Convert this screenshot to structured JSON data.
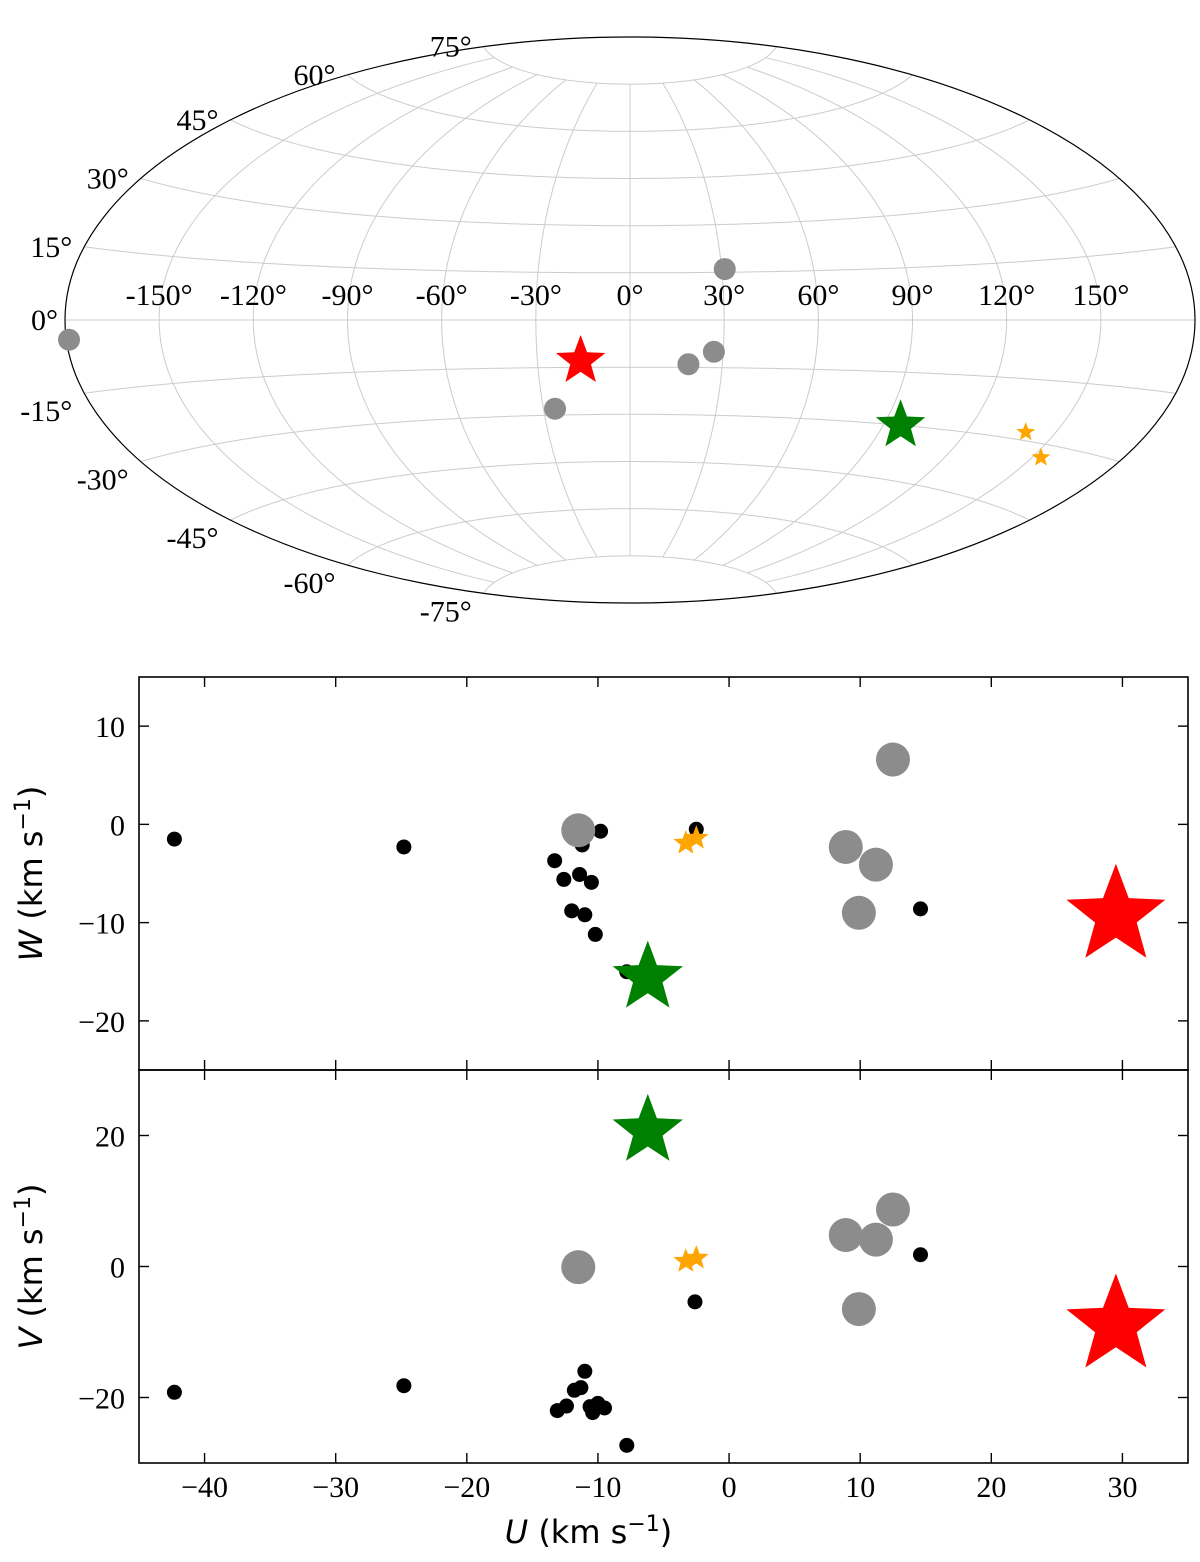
{
  "colors": {
    "background": "#ffffff",
    "grid": "#cccccc",
    "frame": "#000000",
    "gray_marker": "#8c8c8c",
    "black_marker": "#000000",
    "red_star": "#ff0000",
    "green_star": "#008000",
    "orange_star": "#ffa500"
  },
  "chart_data": [
    {
      "type": "scatter",
      "projection": "aitoff",
      "title": "",
      "grid": true,
      "lon_ticks": [
        -150,
        -120,
        -90,
        -60,
        -30,
        0,
        30,
        60,
        90,
        120,
        150
      ],
      "lat_ticks": [
        -75,
        -60,
        -45,
        -30,
        -15,
        0,
        15,
        30,
        45,
        60,
        75
      ],
      "lon_labels": [
        "-150°",
        "-120°",
        "-90°",
        "-60°",
        "-30°",
        "0°",
        "30°",
        "60°",
        "90°",
        "120°",
        "150°"
      ],
      "lat_labels": [
        "-75°",
        "-60°",
        "-45°",
        "-30°",
        "-15°",
        "0°",
        "15°",
        "30°",
        "45°",
        "60°",
        "75°"
      ],
      "series": [
        {
          "name": "gray circles",
          "marker": "circle",
          "color_key": "gray_marker",
          "lon": [
            -180,
            31,
            27,
            19,
            -26
          ],
          "lat": [
            -4,
            16,
            -10,
            -14,
            -28
          ]
        },
        {
          "name": "red star",
          "marker": "star",
          "color_key": "red_star",
          "lon": [
            -16
          ],
          "lat": [
            -13
          ]
        },
        {
          "name": "green star",
          "marker": "star",
          "color_key": "green_star",
          "lon": [
            96
          ],
          "lat": [
            -30
          ]
        },
        {
          "name": "orange stars",
          "marker": "star",
          "color_key": "orange_star",
          "lon": [
            140,
            153
          ],
          "lat": [
            -28,
            -33
          ]
        }
      ]
    },
    {
      "type": "scatter",
      "title": "",
      "xlabel": "",
      "ylabel": "W (km s⁻¹)",
      "ylabel_parts": {
        "var": "W",
        "unit": " (km s",
        "sup": "−1",
        "close": ")"
      },
      "xlim": [
        -45,
        35
      ],
      "ylim": [
        -25,
        15
      ],
      "yticks": [
        -20,
        -10,
        0,
        10
      ],
      "ytick_labels": [
        "−20",
        "−10",
        "0",
        "10"
      ],
      "xticks": [
        -40,
        -30,
        -20,
        -10,
        0,
        10,
        20,
        30
      ],
      "series": [
        {
          "name": "black points",
          "marker": "circle-small",
          "color_key": "black_marker",
          "x": [
            -42.3,
            -24.8,
            -13.3,
            -12.6,
            -12.0,
            -11.4,
            -11.0,
            -10.5,
            -11.2,
            -9.8,
            -10.2,
            -7.8,
            -2.5,
            14.6
          ],
          "y": [
            -1.5,
            -2.3,
            -3.7,
            -5.6,
            -8.8,
            -5.1,
            -9.2,
            -5.9,
            -2.1,
            -0.7,
            -11.2,
            -15.0,
            -0.5,
            -8.6
          ]
        },
        {
          "name": "gray circles",
          "marker": "circle-large",
          "color_key": "gray_marker",
          "x": [
            -11.5,
            12.5,
            8.9,
            11.2,
            9.9
          ],
          "y": [
            -0.6,
            6.6,
            -2.3,
            -4.1,
            -9.0
          ]
        },
        {
          "name": "orange stars",
          "marker": "star-small",
          "color_key": "orange_star",
          "x": [
            -3.3,
            -2.5
          ],
          "y": [
            -1.9,
            -1.4
          ]
        },
        {
          "name": "green star",
          "marker": "star-large",
          "color_key": "green_star",
          "x": [
            -6.2
          ],
          "y": [
            -15.6
          ]
        },
        {
          "name": "red star",
          "marker": "star-xlarge",
          "color_key": "red_star",
          "x": [
            29.5
          ],
          "y": [
            -9.3
          ]
        }
      ]
    },
    {
      "type": "scatter",
      "title": "",
      "xlabel": "U (km s⁻¹)",
      "xlabel_parts": {
        "var": "U",
        "unit": " (km s",
        "sup": "−1",
        "close": ")"
      },
      "ylabel": "V (km s⁻¹)",
      "ylabel_parts": {
        "var": "V",
        "unit": " (km s",
        "sup": "−1",
        "close": ")"
      },
      "xlim": [
        -45,
        35
      ],
      "ylim": [
        -30,
        30
      ],
      "xticks": [
        -40,
        -30,
        -20,
        -10,
        0,
        10,
        20,
        30
      ],
      "xtick_labels": [
        "−40",
        "−30",
        "−20",
        "−10",
        "0",
        "10",
        "20",
        "30"
      ],
      "yticks": [
        -20,
        0,
        20
      ],
      "ytick_labels": [
        "−20",
        "0",
        "20"
      ],
      "series": [
        {
          "name": "black points",
          "marker": "circle-small",
          "color_key": "black_marker",
          "x": [
            -42.3,
            -24.8,
            -13.1,
            -12.4,
            -11.8,
            -11.3,
            -11.0,
            -10.6,
            -10.4,
            -10.0,
            -9.5,
            -7.8,
            -2.6,
            14.6
          ],
          "y": [
            -19.2,
            -18.2,
            -22.0,
            -21.3,
            -18.9,
            -18.5,
            -16.0,
            -21.4,
            -22.3,
            -20.9,
            -21.6,
            -27.3,
            -5.4,
            1.8
          ]
        },
        {
          "name": "gray circles",
          "marker": "circle-large",
          "color_key": "gray_marker",
          "x": [
            -11.5,
            12.5,
            8.9,
            11.2,
            9.9
          ],
          "y": [
            -0.1,
            8.7,
            4.8,
            4.1,
            -6.5
          ]
        },
        {
          "name": "orange stars",
          "marker": "star-small",
          "color_key": "orange_star",
          "x": [
            -3.3,
            -2.5
          ],
          "y": [
            0.8,
            1.3
          ]
        },
        {
          "name": "green star",
          "marker": "star-large",
          "color_key": "green_star",
          "x": [
            -6.2
          ],
          "y": [
            20.7
          ]
        },
        {
          "name": "red star",
          "marker": "star-xlarge",
          "color_key": "red_star",
          "x": [
            29.5
          ],
          "y": [
            -9.0
          ]
        }
      ]
    }
  ]
}
